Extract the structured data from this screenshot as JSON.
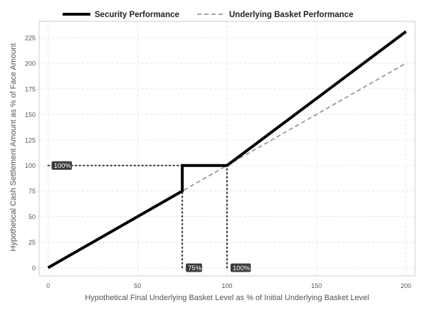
{
  "chart_data": {
    "type": "line",
    "title": "",
    "xlabel": "Hypothetical Final Underlying Basket Level as % of Initial Underlying Basket Level",
    "ylabel": "Hypothetical Cash Settlement Amount as % of Face Amount",
    "xlim": [
      -5,
      205
    ],
    "ylim": [
      -8,
      241
    ],
    "xticks": [
      0,
      50,
      100,
      150,
      200
    ],
    "yticks": [
      0,
      25,
      50,
      75,
      100,
      125,
      150,
      175,
      200,
      225
    ],
    "grid": true,
    "legend_position": "top",
    "series": [
      {
        "name": "Security Performance",
        "color": "#000000",
        "style": "solid",
        "x": [
          0,
          75,
          75,
          100,
          200
        ],
        "y": [
          0,
          75,
          100,
          100,
          231
        ]
      },
      {
        "name": "Underlying Basket Performance",
        "color": "#999999",
        "style": "dashed",
        "x": [
          0,
          200
        ],
        "y": [
          0,
          200
        ]
      }
    ],
    "reference_lines": [
      {
        "name": "100pct-level",
        "x": [
          0,
          75
        ],
        "y": [
          100,
          100
        ]
      },
      {
        "name": "75pct-threshold",
        "x": [
          75,
          75
        ],
        "y": [
          0,
          100
        ]
      },
      {
        "name": "100pct-initial",
        "x": [
          100,
          100
        ],
        "y": [
          0,
          100
        ]
      }
    ],
    "annotations": [
      {
        "name": "annotation-100pct-y",
        "text": "100%",
        "x": 0,
        "y": 100
      },
      {
        "name": "annotation-75pct-x",
        "text": "75%",
        "x": 75,
        "y": 0
      },
      {
        "name": "annotation-100pct-x",
        "text": "100%",
        "x": 100,
        "y": 0
      }
    ]
  }
}
